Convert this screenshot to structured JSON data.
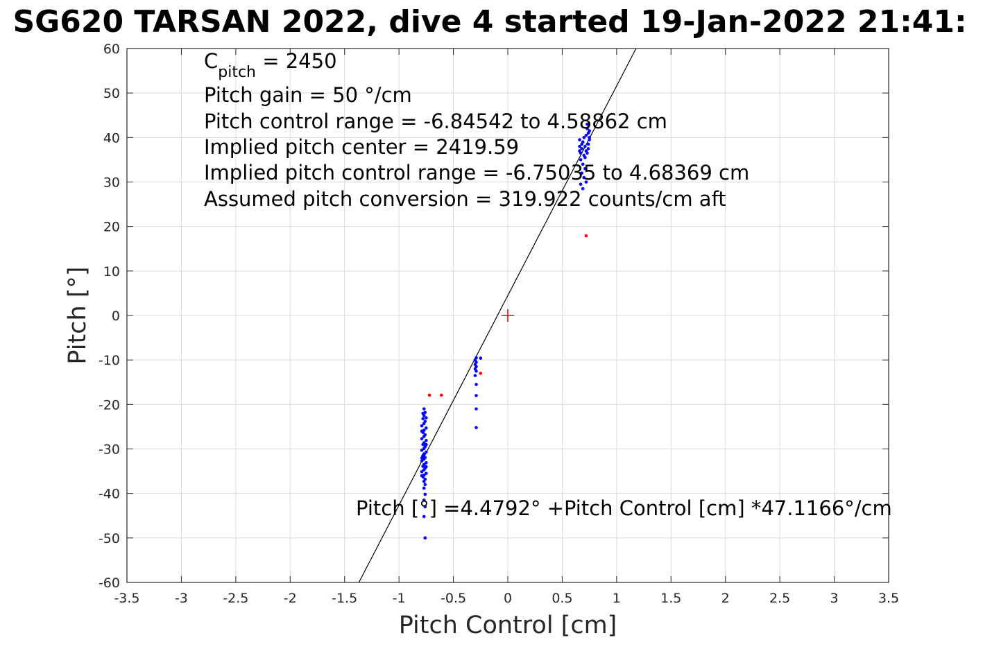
{
  "chart_data": {
    "type": "scatter",
    "title": "SG620 TARSAN 2022, dive 4 started 19-Jan-2022 21:41:",
    "xlabel": "Pitch Control [cm]",
    "ylabel": "Pitch [°]",
    "xlim": [
      -3.5,
      3.5
    ],
    "ylim": [
      -60,
      60
    ],
    "grid": true,
    "x_ticks": [
      -3.5,
      -3,
      -2.5,
      -2,
      -1.5,
      -1,
      -0.5,
      0,
      0.5,
      1,
      1.5,
      2,
      2.5,
      3,
      3.5
    ],
    "x_tick_labels": [
      "-3.5",
      "-3",
      "-2.5",
      "-2",
      "-1.5",
      "-1",
      "-0.5",
      "0",
      "0.5",
      "1",
      "1.5",
      "2",
      "2.5",
      "3",
      "3.5"
    ],
    "y_ticks": [
      -60,
      -50,
      -40,
      -30,
      -20,
      -10,
      0,
      10,
      20,
      30,
      40,
      50,
      60
    ],
    "y_tick_labels": [
      "-60",
      "-50",
      "-40",
      "-30",
      "-20",
      "-10",
      "0",
      "10",
      "20",
      "30",
      "40",
      "50",
      "60"
    ],
    "annotations": {
      "cpitch_base": "C",
      "cpitch_sub": "pitch",
      "cpitch_value": " = 2450",
      "pitch_gain": "Pitch gain = 50 °/cm",
      "control_range": "Pitch control range = -6.84542 to 4.58862 cm",
      "implied_center": "Implied pitch center = 2419.59",
      "implied_range": "Implied pitch control range = -6.75035 to 4.68369 cm",
      "conversion": "Assumed pitch conversion = 319.922 counts/cm aft",
      "fit_equation": "Pitch [°] =4.4792° +Pitch Control [cm] *47.1166°/cm"
    },
    "fit_line": {
      "intercept": 4.4792,
      "slope": 47.1166,
      "color": "#000000"
    },
    "center_marker": {
      "x": 0,
      "y": 0,
      "color": "#ff0000"
    },
    "colors": {
      "good": "#0000ff",
      "outlier": "#ff0000",
      "grid": "#d9d9d9",
      "axis": "#262626"
    },
    "series": [
      {
        "color": "#0000ff",
        "points": [
          [
            -0.77,
            -21
          ],
          [
            -0.76,
            -21.8
          ],
          [
            -0.77,
            -22.5
          ],
          [
            -0.78,
            -23.2
          ],
          [
            -0.76,
            -23.8
          ],
          [
            -0.77,
            -24.3
          ],
          [
            -0.79,
            -24.8
          ],
          [
            -0.75,
            -25.3
          ],
          [
            -0.77,
            -25.8
          ],
          [
            -0.78,
            -26.3
          ],
          [
            -0.76,
            -26.8
          ],
          [
            -0.77,
            -27.2
          ],
          [
            -0.79,
            -27.7
          ],
          [
            -0.75,
            -28.1
          ],
          [
            -0.77,
            -28.6
          ],
          [
            -0.78,
            -29.0
          ],
          [
            -0.76,
            -29.5
          ],
          [
            -0.77,
            -29.9
          ],
          [
            -0.79,
            -30.3
          ],
          [
            -0.75,
            -30.7
          ],
          [
            -0.77,
            -31.1
          ],
          [
            -0.78,
            -31.5
          ],
          [
            -0.76,
            -31.9
          ],
          [
            -0.77,
            -32.3
          ],
          [
            -0.79,
            -32.7
          ],
          [
            -0.75,
            -33.1
          ],
          [
            -0.77,
            -33.5
          ],
          [
            -0.78,
            -33.9
          ],
          [
            -0.76,
            -34.3
          ],
          [
            -0.77,
            -34.7
          ],
          [
            -0.79,
            -35.1
          ],
          [
            -0.75,
            -35.5
          ],
          [
            -0.77,
            -35.9
          ],
          [
            -0.78,
            -36.3
          ],
          [
            -0.76,
            -36.8
          ],
          [
            -0.77,
            -37.3
          ],
          [
            -0.76,
            -38.0
          ],
          [
            -0.77,
            -38.8
          ],
          [
            -0.76,
            -40.2
          ],
          [
            -0.77,
            -41.5
          ],
          [
            -0.76,
            -43.0
          ],
          [
            -0.77,
            -45.2
          ],
          [
            -0.76,
            -50.0
          ],
          [
            -0.75,
            -23.0
          ],
          [
            -0.79,
            -26.0
          ],
          [
            -0.75,
            -29.0
          ],
          [
            -0.79,
            -32.0
          ],
          [
            -0.75,
            -34.0
          ],
          [
            -0.79,
            -36.0
          ],
          [
            -0.78,
            -22.0
          ],
          [
            -0.29,
            -9.5
          ],
          [
            -0.3,
            -10.0
          ],
          [
            -0.29,
            -10.5
          ],
          [
            -0.3,
            -11.0
          ],
          [
            -0.29,
            -11.5
          ],
          [
            -0.3,
            -12.0
          ],
          [
            -0.29,
            -12.5
          ],
          [
            -0.3,
            -13.5
          ],
          [
            -0.29,
            -15.5
          ],
          [
            -0.29,
            -18.0
          ],
          [
            -0.29,
            -21.0
          ],
          [
            -0.29,
            -25.2
          ],
          [
            -0.25,
            -9.6
          ],
          [
            0.66,
            39.5
          ],
          [
            0.68,
            38.5
          ],
          [
            0.7,
            40.0
          ],
          [
            0.72,
            37.0
          ],
          [
            0.74,
            41.0
          ],
          [
            0.67,
            36.5
          ],
          [
            0.69,
            39.0
          ],
          [
            0.71,
            38.0
          ],
          [
            0.73,
            42.0
          ],
          [
            0.75,
            39.5
          ],
          [
            0.66,
            38.0
          ],
          [
            0.68,
            37.5
          ],
          [
            0.7,
            36.0
          ],
          [
            0.72,
            40.5
          ],
          [
            0.74,
            38.5
          ],
          [
            0.67,
            35.0
          ],
          [
            0.69,
            34.0
          ],
          [
            0.71,
            33.0
          ],
          [
            0.73,
            36.5
          ],
          [
            0.75,
            41.5
          ],
          [
            0.66,
            37.0
          ],
          [
            0.68,
            32.0
          ],
          [
            0.7,
            31.0
          ],
          [
            0.72,
            30.0
          ],
          [
            0.74,
            37.5
          ],
          [
            0.67,
            29.5
          ],
          [
            0.69,
            28.5
          ],
          [
            0.71,
            35.5
          ],
          [
            0.73,
            43.0
          ],
          [
            0.75,
            40.0
          ]
        ]
      },
      {
        "color": "#ff0000",
        "points": [
          [
            -0.72,
            -17.9
          ],
          [
            -0.61,
            -17.9
          ],
          [
            -0.25,
            -13.0
          ],
          [
            0.72,
            17.9
          ]
        ]
      }
    ]
  }
}
